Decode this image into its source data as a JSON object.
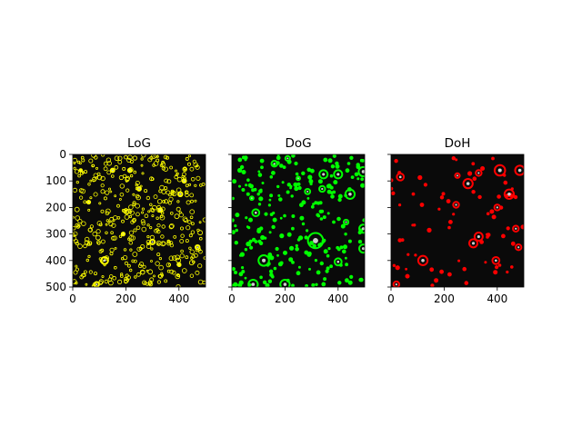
{
  "chart_data": [
    {
      "type": "scatter",
      "title": "LoG",
      "marker": "circle",
      "color": "#ffff00",
      "background": "#0a0a0a",
      "xlim": [
        0,
        500
      ],
      "ylim": [
        500,
        0
      ],
      "x_ticks": [
        "0",
        "200",
        "400"
      ],
      "y_ticks": [
        "0",
        "100",
        "200",
        "300",
        "400",
        "500"
      ],
      "points": [
        [
          120,
          400,
          12
        ],
        [
          300,
          330,
          8
        ],
        [
          150,
          60,
          6
        ],
        [
          215,
          60,
          6
        ],
        [
          60,
          180,
          5
        ],
        [
          250,
          130,
          6
        ],
        [
          405,
          150,
          7
        ],
        [
          470,
          350,
          7
        ],
        [
          90,
          490,
          8
        ],
        [
          400,
          415,
          5
        ],
        [
          420,
          100,
          6
        ],
        [
          30,
          60,
          4
        ],
        [
          330,
          210,
          6
        ],
        [
          190,
          300,
          5
        ]
      ]
    },
    {
      "type": "scatter",
      "title": "DoG",
      "marker": "circle",
      "color": "#00ff00",
      "background": "#0a0a0a",
      "xlim": [
        0,
        500
      ],
      "ylim": [
        500,
        0
      ],
      "x_ticks": [
        "0",
        "200",
        "400"
      ],
      "y_ticks": [],
      "points": [
        [
          315,
          325,
          26
        ],
        [
          120,
          400,
          18
        ],
        [
          445,
          150,
          16
        ],
        [
          495,
          65,
          16
        ],
        [
          200,
          490,
          16
        ],
        [
          80,
          490,
          16
        ],
        [
          495,
          280,
          14
        ],
        [
          495,
          355,
          14
        ],
        [
          400,
          75,
          14
        ],
        [
          345,
          75,
          14
        ],
        [
          340,
          130,
          10
        ],
        [
          285,
          140,
          9
        ],
        [
          400,
          405,
          12
        ],
        [
          90,
          220,
          12
        ],
        [
          160,
          35,
          10
        ],
        [
          210,
          15,
          8
        ],
        [
          75,
          165,
          6
        ],
        [
          250,
          90,
          6
        ],
        [
          430,
          255,
          8
        ]
      ]
    },
    {
      "type": "scatter",
      "title": "DoH",
      "marker": "circle",
      "color": "#ff0000",
      "background": "#0a0a0a",
      "xlim": [
        0,
        500
      ],
      "ylim": [
        500,
        0
      ],
      "x_ticks": [
        "0",
        "200",
        "400"
      ],
      "y_ticks": [],
      "points": [
        [
          120,
          400,
          16
        ],
        [
          410,
          60,
          18
        ],
        [
          485,
          60,
          16
        ],
        [
          445,
          150,
          16
        ],
        [
          290,
          110,
          16
        ],
        [
          330,
          310,
          14
        ],
        [
          310,
          335,
          14
        ],
        [
          35,
          85,
          12
        ],
        [
          395,
          400,
          12
        ],
        [
          480,
          350,
          10
        ],
        [
          400,
          200,
          10
        ],
        [
          330,
          70,
          10
        ],
        [
          20,
          490,
          10
        ],
        [
          470,
          280,
          10
        ],
        [
          250,
          80,
          8
        ],
        [
          245,
          190,
          10
        ]
      ]
    }
  ]
}
